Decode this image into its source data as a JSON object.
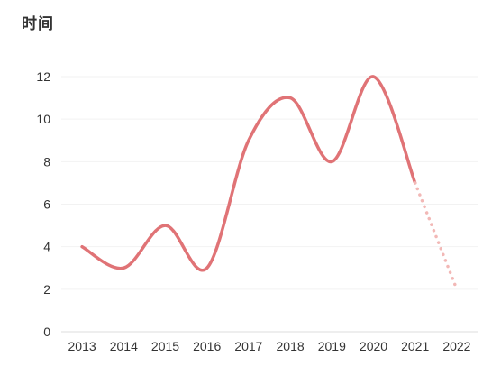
{
  "chart_data": {
    "type": "line",
    "title": "时间",
    "xlabel": "",
    "ylabel": "",
    "categories": [
      "2013",
      "2014",
      "2015",
      "2016",
      "2017",
      "2018",
      "2019",
      "2020",
      "2021",
      "2022"
    ],
    "series": [
      {
        "name": "",
        "values": [
          4,
          3,
          5,
          3,
          9,
          11,
          8,
          12,
          7,
          null
        ],
        "color": "#E07376",
        "style": "solid"
      },
      {
        "name": "",
        "values": [
          null,
          null,
          null,
          null,
          null,
          null,
          null,
          null,
          7,
          2
        ],
        "color": "#F2B8B6",
        "style": "dotted"
      }
    ],
    "ylim": [
      0,
      12
    ],
    "yticks": [
      0,
      2,
      4,
      6,
      8,
      10,
      12
    ],
    "grid": true,
    "smooth": true,
    "colors": {
      "grid": "#F2F2F2",
      "axis": "#DDDDDD"
    }
  }
}
